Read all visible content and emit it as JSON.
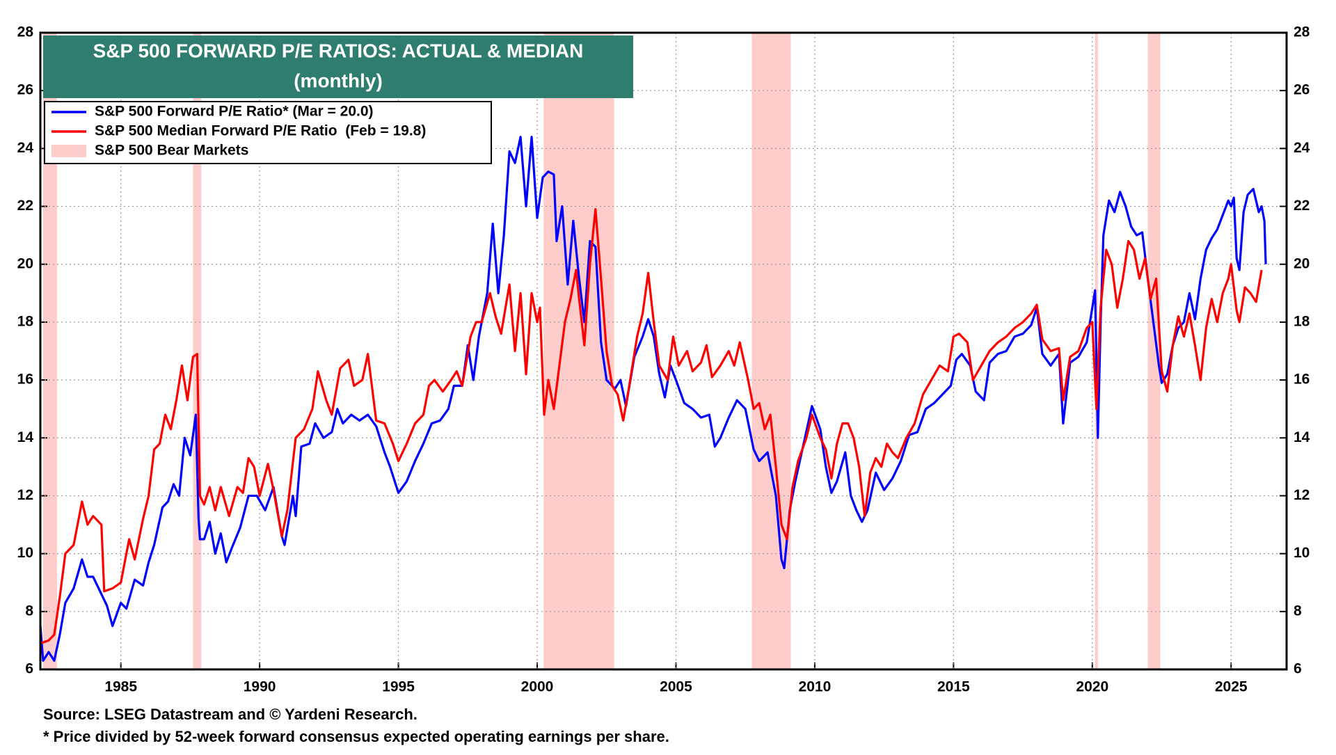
{
  "chart_data": {
    "type": "line",
    "title": "S&P 500 FORWARD P/E RATIOS: ACTUAL & MEDIAN",
    "subtitle": "(monthly)",
    "source": "Source: LSEG Datastream and © Yardeni Research.",
    "footnote": "* Price divided by 52-week forward consensus expected operating earnings per share.",
    "xlim": [
      1982.1,
      2027.0
    ],
    "xticks": [
      1985,
      1990,
      1995,
      2000,
      2005,
      2010,
      2015,
      2020,
      2025
    ],
    "ylim": [
      6,
      28
    ],
    "yticks": [
      6,
      8,
      10,
      12,
      14,
      16,
      18,
      20,
      22,
      24,
      26,
      28
    ],
    "y2lim": [
      6,
      28
    ],
    "y2ticks": [
      6,
      8,
      10,
      12,
      14,
      16,
      18,
      20,
      22,
      24,
      26,
      28
    ],
    "grid": true,
    "legend": "upper left",
    "bear_markets": {
      "name": "S&P 500 Bear Markets",
      "color": "#ffcccc",
      "periods": [
        [
          1982.2,
          1982.7
        ],
        [
          1987.6,
          1987.9
        ],
        [
          2000.23,
          2002.77
        ],
        [
          2007.73,
          2009.14
        ],
        [
          2020.1,
          2020.2
        ],
        [
          2022.0,
          2022.45
        ]
      ]
    },
    "series": [
      {
        "name": "S&P 500 Forward P/E Ratio* (Mar = 20.0)",
        "color": "#0000ff",
        "x": [
          1982.1,
          1982.2,
          1982.4,
          1982.6,
          1982.8,
          1983.0,
          1983.3,
          1983.6,
          1983.8,
          1984.0,
          1984.3,
          1984.5,
          1984.7,
          1985.0,
          1985.2,
          1985.5,
          1985.8,
          1986.0,
          1986.2,
          1986.5,
          1986.7,
          1986.9,
          1987.1,
          1987.3,
          1987.5,
          1987.7,
          1987.8,
          1987.85,
          1988.0,
          1988.2,
          1988.4,
          1988.6,
          1988.8,
          1989.0,
          1989.3,
          1989.6,
          1989.9,
          1990.2,
          1990.5,
          1990.8,
          1990.9,
          1991.2,
          1991.3,
          1991.5,
          1991.8,
          1992.0,
          1992.3,
          1992.6,
          1992.8,
          1993.0,
          1993.3,
          1993.6,
          1993.9,
          1994.2,
          1994.5,
          1994.7,
          1995.0,
          1995.3,
          1995.6,
          1995.9,
          1996.2,
          1996.5,
          1996.8,
          1997.0,
          1997.3,
          1997.5,
          1997.7,
          1997.9,
          1998.2,
          1998.4,
          1998.6,
          1998.8,
          1999.0,
          1999.2,
          1999.4,
          1999.6,
          1999.8,
          2000.0,
          2000.2,
          2000.4,
          2000.6,
          2000.7,
          2000.9,
          2001.1,
          2001.3,
          2001.5,
          2001.7,
          2001.9,
          2002.1,
          2002.3,
          2002.5,
          2002.8,
          2003.0,
          2003.2,
          2003.5,
          2003.8,
          2004.0,
          2004.2,
          2004.4,
          2004.6,
          2004.8,
          2005.0,
          2005.3,
          2005.6,
          2005.9,
          2006.2,
          2006.4,
          2006.6,
          2006.9,
          2007.2,
          2007.5,
          2007.8,
          2008.0,
          2008.3,
          2008.6,
          2008.8,
          2008.9,
          2009.1,
          2009.3,
          2009.6,
          2009.9,
          2010.2,
          2010.4,
          2010.6,
          2010.8,
          2011.1,
          2011.3,
          2011.5,
          2011.7,
          2011.9,
          2012.2,
          2012.5,
          2012.8,
          2013.1,
          2013.4,
          2013.7,
          2014.0,
          2014.3,
          2014.6,
          2014.9,
          2015.1,
          2015.3,
          2015.6,
          2015.8,
          2016.1,
          2016.3,
          2016.6,
          2016.9,
          2017.2,
          2017.5,
          2017.8,
          2018.0,
          2018.2,
          2018.5,
          2018.8,
          2018.95,
          2019.2,
          2019.5,
          2019.8,
          2020.0,
          2020.1,
          2020.2,
          2020.3,
          2020.4,
          2020.6,
          2020.8,
          2021.0,
          2021.2,
          2021.4,
          2021.6,
          2021.8,
          2022.0,
          2022.2,
          2022.4,
          2022.5,
          2022.7,
          2022.9,
          2023.1,
          2023.3,
          2023.5,
          2023.7,
          2023.9,
          2024.1,
          2024.3,
          2024.5,
          2024.7,
          2024.9,
          2025.0,
          2025.1,
          2025.2,
          2025.3,
          2025.45,
          2025.6,
          2025.8,
          2026.0,
          2026.1,
          2026.2,
          2026.25
        ],
        "values": [
          7.5,
          6.3,
          6.6,
          6.3,
          7.2,
          8.3,
          8.8,
          9.8,
          9.2,
          9.2,
          8.6,
          8.2,
          7.5,
          8.3,
          8.1,
          9.1,
          8.9,
          9.7,
          10.3,
          11.6,
          11.8,
          12.4,
          12.0,
          14.0,
          13.4,
          14.8,
          11.2,
          10.5,
          10.5,
          11.1,
          10.0,
          10.7,
          9.7,
          10.2,
          10.9,
          12.0,
          12.0,
          11.5,
          12.3,
          10.6,
          10.3,
          12.0,
          11.3,
          13.7,
          13.8,
          14.5,
          14.0,
          14.2,
          15.0,
          14.5,
          14.8,
          14.6,
          14.8,
          14.4,
          13.5,
          13.0,
          12.1,
          12.5,
          13.2,
          13.8,
          14.5,
          14.6,
          15.0,
          15.8,
          15.8,
          17.2,
          16.0,
          17.5,
          19.0,
          21.4,
          19.0,
          21.0,
          23.9,
          23.5,
          24.4,
          22.0,
          24.4,
          21.6,
          23.0,
          23.2,
          23.1,
          20.8,
          22.0,
          19.3,
          21.5,
          19.6,
          18.0,
          20.8,
          20.6,
          17.3,
          16.0,
          15.7,
          16.0,
          15.1,
          16.8,
          17.5,
          18.1,
          17.5,
          16.2,
          15.4,
          16.5,
          16.0,
          15.2,
          15.0,
          14.7,
          14.8,
          13.7,
          14.0,
          14.7,
          15.3,
          15.0,
          13.6,
          13.2,
          13.5,
          12.0,
          9.8,
          9.5,
          11.5,
          12.5,
          13.8,
          15.1,
          14.3,
          13.0,
          12.1,
          12.5,
          13.5,
          12.0,
          11.5,
          11.1,
          11.5,
          12.8,
          12.2,
          12.6,
          13.2,
          14.1,
          14.2,
          15.0,
          15.2,
          15.5,
          15.8,
          16.7,
          16.9,
          16.5,
          15.6,
          15.3,
          16.6,
          16.9,
          17.0,
          17.5,
          17.6,
          17.9,
          18.5,
          16.9,
          16.5,
          16.9,
          14.5,
          16.6,
          16.8,
          17.3,
          18.5,
          19.1,
          14.0,
          18.0,
          21.0,
          22.2,
          21.8,
          22.5,
          22.0,
          21.3,
          21.0,
          21.1,
          19.5,
          18.0,
          16.5,
          15.9,
          16.2,
          17.2,
          17.8,
          18.0,
          19.0,
          18.1,
          19.5,
          20.5,
          20.9,
          21.2,
          21.7,
          22.2,
          22.0,
          22.3,
          20.2,
          19.8,
          21.8,
          22.4,
          22.6,
          21.8,
          22.0,
          21.5,
          20.0
        ]
      },
      {
        "name": "S&P 500 Median Forward P/E Ratio  (Feb = 19.8)",
        "color": "#ff0000",
        "x": [
          1982.1,
          1982.4,
          1982.6,
          1982.8,
          1983.0,
          1983.3,
          1983.6,
          1983.8,
          1984.0,
          1984.3,
          1984.4,
          1984.7,
          1985.0,
          1985.3,
          1985.5,
          1985.8,
          1986.0,
          1986.2,
          1986.4,
          1986.6,
          1986.8,
          1987.0,
          1987.2,
          1987.4,
          1987.6,
          1987.75,
          1987.85,
          1988.0,
          1988.2,
          1988.4,
          1988.6,
          1988.9,
          1989.2,
          1989.4,
          1989.6,
          1989.8,
          1990.0,
          1990.3,
          1990.5,
          1990.8,
          1991.0,
          1991.3,
          1991.6,
          1991.9,
          1992.1,
          1992.4,
          1992.6,
          1992.9,
          1993.2,
          1993.4,
          1993.7,
          1993.9,
          1994.2,
          1994.5,
          1994.8,
          1995.0,
          1995.3,
          1995.6,
          1995.9,
          1996.1,
          1996.3,
          1996.6,
          1996.9,
          1997.1,
          1997.3,
          1997.6,
          1997.8,
          1998.0,
          1998.3,
          1998.5,
          1998.7,
          1999.0,
          1999.2,
          1999.4,
          1999.6,
          1999.8,
          2000.0,
          2000.1,
          2000.25,
          2000.4,
          2000.6,
          2000.8,
          2001.0,
          2001.2,
          2001.4,
          2001.5,
          2001.7,
          2001.9,
          2002.1,
          2002.3,
          2002.5,
          2002.7,
          2002.9,
          2003.1,
          2003.3,
          2003.6,
          2003.8,
          2004.0,
          2004.2,
          2004.4,
          2004.7,
          2004.9,
          2005.1,
          2005.4,
          2005.6,
          2005.9,
          2006.1,
          2006.3,
          2006.6,
          2006.9,
          2007.1,
          2007.3,
          2007.6,
          2007.8,
          2008.0,
          2008.2,
          2008.4,
          2008.6,
          2008.8,
          2009.0,
          2009.2,
          2009.4,
          2009.7,
          2009.9,
          2010.2,
          2010.4,
          2010.6,
          2010.8,
          2011.0,
          2011.2,
          2011.4,
          2011.6,
          2011.8,
          2012.0,
          2012.2,
          2012.4,
          2012.6,
          2012.8,
          2013.0,
          2013.3,
          2013.6,
          2013.9,
          2014.2,
          2014.5,
          2014.8,
          2015.0,
          2015.2,
          2015.5,
          2015.7,
          2016.0,
          2016.3,
          2016.6,
          2016.9,
          2017.2,
          2017.5,
          2017.8,
          2018.0,
          2018.2,
          2018.5,
          2018.8,
          2018.95,
          2019.2,
          2019.5,
          2019.8,
          2020.0,
          2020.15,
          2020.3,
          2020.5,
          2020.7,
          2020.9,
          2021.1,
          2021.3,
          2021.5,
          2021.7,
          2021.9,
          2022.1,
          2022.3,
          2022.5,
          2022.7,
          2022.9,
          2023.1,
          2023.3,
          2023.5,
          2023.7,
          2023.9,
          2024.1,
          2024.3,
          2024.5,
          2024.7,
          2024.9,
          2025.0,
          2025.2,
          2025.3,
          2025.5,
          2025.7,
          2025.9,
          2026.1
        ],
        "values": [
          6.9,
          7.0,
          7.2,
          8.5,
          10.0,
          10.3,
          11.8,
          11.0,
          11.3,
          11.0,
          8.7,
          8.8,
          9.0,
          10.5,
          9.8,
          11.2,
          12.0,
          13.6,
          13.8,
          14.8,
          14.3,
          15.3,
          16.5,
          15.3,
          16.8,
          16.9,
          12.0,
          11.7,
          12.3,
          11.5,
          12.3,
          11.3,
          12.3,
          12.1,
          13.3,
          13.0,
          12.0,
          13.1,
          12.2,
          10.6,
          11.5,
          14.0,
          14.3,
          15.0,
          16.3,
          15.3,
          14.8,
          16.4,
          16.7,
          15.8,
          16.0,
          16.9,
          14.6,
          14.5,
          13.8,
          13.2,
          13.8,
          14.5,
          14.8,
          15.8,
          16.0,
          15.6,
          16.0,
          16.3,
          15.8,
          17.5,
          18.0,
          18.0,
          19.0,
          18.2,
          17.6,
          19.3,
          17.0,
          19.0,
          16.2,
          19.0,
          18.0,
          18.5,
          14.8,
          16.0,
          15.0,
          16.5,
          18.0,
          18.8,
          19.8,
          18.9,
          17.2,
          20.0,
          21.9,
          19.5,
          17.0,
          15.8,
          15.5,
          14.6,
          15.7,
          17.5,
          18.3,
          19.7,
          18.0,
          16.5,
          16.0,
          17.5,
          16.5,
          17.0,
          16.3,
          16.6,
          17.2,
          16.1,
          16.5,
          17.0,
          16.5,
          17.3,
          16.0,
          15.0,
          15.2,
          14.3,
          14.8,
          13.0,
          11.0,
          10.5,
          12.3,
          13.2,
          14.0,
          14.8,
          14.0,
          13.6,
          12.6,
          13.8,
          14.5,
          14.5,
          14.0,
          13.0,
          11.3,
          12.8,
          13.3,
          13.0,
          13.8,
          13.5,
          13.3,
          14.0,
          14.5,
          15.5,
          16.0,
          16.5,
          16.3,
          17.5,
          17.6,
          17.3,
          16.0,
          16.5,
          17.0,
          17.3,
          17.5,
          17.8,
          18.0,
          18.3,
          18.6,
          17.4,
          17.0,
          17.1,
          15.3,
          16.8,
          17.0,
          17.8,
          18.0,
          15.0,
          18.5,
          20.5,
          20.0,
          18.5,
          19.5,
          20.8,
          20.5,
          19.5,
          20.2,
          18.8,
          19.5,
          16.3,
          15.6,
          17.2,
          18.2,
          17.5,
          18.3,
          17.2,
          16.0,
          17.8,
          18.8,
          18.0,
          19.0,
          19.5,
          20.0,
          18.4,
          18.0,
          19.2,
          19.0,
          18.7,
          19.8
        ]
      }
    ]
  }
}
